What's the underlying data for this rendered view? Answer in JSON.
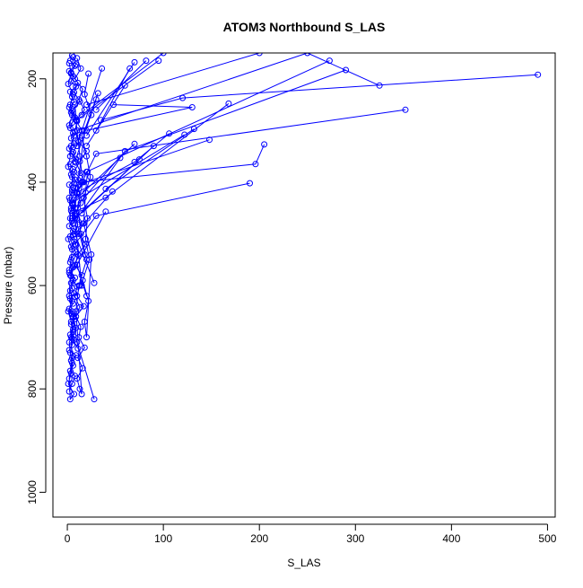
{
  "chart_data": {
    "type": "line",
    "title": "ATOM3 Northbound S_LAS",
    "xlabel": "S_LAS",
    "ylabel": "Pressure (mbar)",
    "xlim": [
      -15,
      508
    ],
    "ylim": [
      1048,
      150
    ],
    "y_reversed": true,
    "x_ticks": [
      0,
      100,
      200,
      300,
      400,
      500
    ],
    "y_ticks": [
      200,
      400,
      600,
      800,
      1000
    ],
    "marker": "open-circle",
    "color": "#0000ff",
    "series": [
      {
        "x": [
          490,
          120,
          35
        ],
        "y": [
          192,
          237,
          280
        ]
      },
      {
        "x": [
          352,
          30,
          10
        ],
        "y": [
          260,
          345,
          420
        ]
      },
      {
        "x": [
          325,
          250,
          10
        ],
        "y": [
          213,
          150,
          300
        ]
      },
      {
        "x": [
          290,
          60,
          8
        ],
        "y": [
          183,
          340,
          450
        ]
      },
      {
        "x": [
          273,
          20,
          5
        ],
        "y": [
          165,
          380,
          420
        ]
      },
      {
        "x": [
          205,
          196,
          15
        ],
        "y": [
          327,
          365,
          400
        ]
      },
      {
        "x": [
          190,
          30,
          8
        ],
        "y": [
          402,
          465,
          520
        ]
      },
      {
        "x": [
          168,
          40,
          5
        ],
        "y": [
          248,
          430,
          460
        ]
      },
      {
        "x": [
          148,
          12,
          5
        ],
        "y": [
          318,
          405,
          470
        ]
      },
      {
        "x": [
          122,
          5
        ],
        "y": [
          308,
          440
        ]
      },
      {
        "x": [
          132,
          40
        ],
        "y": [
          297,
          413
        ]
      },
      {
        "x": [
          106,
          70,
          10
        ],
        "y": [
          306,
          361,
          420
        ]
      },
      {
        "x": [
          90,
          15
        ],
        "y": [
          330,
          460
        ]
      },
      {
        "x": [
          70,
          5,
          18
        ],
        "y": [
          326,
          440,
          540
        ]
      },
      {
        "x": [
          55,
          10
        ],
        "y": [
          353,
          470
        ]
      },
      {
        "x": [
          47,
          8,
          28
        ],
        "y": [
          418,
          500,
          595
        ]
      },
      {
        "x": [
          48,
          130,
          20
        ],
        "y": [
          250,
          255,
          300
        ]
      },
      {
        "x": [
          40,
          10,
          20
        ],
        "y": [
          457,
          560,
          620
        ]
      },
      {
        "x": [
          75,
          8,
          15
        ],
        "y": [
          356,
          470,
          600
        ]
      },
      {
        "x": [
          36,
          10
        ],
        "y": [
          180,
          330
        ]
      },
      {
        "x": [
          32,
          18,
          6
        ],
        "y": [
          228,
          300,
          480
        ]
      },
      {
        "x": [
          30,
          8
        ],
        "y": [
          240,
          360
        ]
      },
      {
        "x": [
          60,
          20
        ],
        "y": [
          213,
          330
        ]
      },
      {
        "x": [
          65,
          30
        ],
        "y": [
          180,
          300
        ]
      },
      {
        "x": [
          70,
          20
        ],
        "y": [
          168,
          310
        ]
      },
      {
        "x": [
          82,
          30
        ],
        "y": [
          165,
          260
        ]
      },
      {
        "x": [
          100,
          15
        ],
        "y": [
          150,
          270
        ]
      },
      {
        "x": [
          200,
          20
        ],
        "y": [
          150,
          250
        ]
      },
      {
        "x": [
          95,
          10
        ],
        "y": [
          165,
          280
        ]
      },
      {
        "x": [
          28,
          10,
          5
        ],
        "y": [
          820,
          710,
          650
        ]
      },
      {
        "x": [
          5,
          3,
          8,
          2,
          6,
          4,
          9,
          3,
          5,
          7,
          2,
          4,
          8,
          5,
          3,
          6,
          4,
          7,
          2,
          5,
          9,
          3,
          6,
          4,
          8,
          2,
          5,
          7,
          3,
          6,
          4,
          8,
          5,
          2,
          6,
          3,
          7,
          4,
          9,
          5,
          3,
          6,
          2,
          8,
          4,
          5,
          7,
          3,
          6,
          2,
          5,
          8,
          4,
          6,
          3,
          7,
          5,
          2,
          9,
          4,
          6,
          3,
          8,
          5,
          2
        ],
        "y": [
          155,
          165,
          175,
          185,
          195,
          205,
          215,
          225,
          235,
          245,
          255,
          265,
          275,
          285,
          295,
          305,
          315,
          325,
          335,
          345,
          355,
          365,
          375,
          385,
          395,
          405,
          415,
          425,
          435,
          445,
          455,
          465,
          475,
          485,
          495,
          505,
          515,
          525,
          535,
          545,
          555,
          565,
          575,
          585,
          595,
          605,
          615,
          625,
          635,
          645,
          655,
          665,
          675,
          685,
          695,
          705,
          715,
          725,
          735,
          745,
          755,
          765,
          775,
          790,
          805
        ]
      },
      {
        "x": [
          10,
          14,
          8,
          16,
          12,
          18,
          9,
          15,
          11,
          20,
          13,
          7,
          17,
          10,
          14,
          9,
          16,
          12,
          19,
          11,
          8,
          15,
          13,
          10,
          17,
          9,
          14,
          12,
          18,
          11,
          16,
          10,
          13,
          15,
          9,
          12,
          20,
          14,
          11,
          16,
          13,
          10,
          8
        ],
        "y": [
          160,
          180,
          200,
          220,
          240,
          260,
          280,
          300,
          320,
          340,
          360,
          380,
          400,
          420,
          440,
          460,
          480,
          500,
          520,
          540,
          560,
          580,
          600,
          620,
          640,
          660,
          680,
          700,
          720,
          740,
          760,
          780,
          800,
          810,
          650,
          600,
          550,
          500,
          450,
          400,
          350,
          300,
          250
        ]
      },
      {
        "x": [
          2,
          4,
          1,
          6,
          3,
          5,
          2,
          7,
          4,
          3,
          1,
          5,
          6,
          2,
          4,
          3,
          7,
          1,
          5,
          4,
          2,
          6,
          3,
          5,
          1,
          4,
          6,
          2,
          3,
          5,
          4,
          1,
          7,
          3,
          2,
          5,
          4,
          6,
          2,
          3
        ],
        "y": [
          170,
          190,
          210,
          230,
          250,
          270,
          290,
          310,
          330,
          350,
          370,
          390,
          410,
          430,
          450,
          470,
          490,
          510,
          530,
          550,
          570,
          590,
          610,
          630,
          650,
          670,
          690,
          710,
          730,
          750,
          770,
          790,
          810,
          820,
          780,
          740,
          700,
          660,
          620,
          580
        ]
      },
      {
        "x": [
          22,
          18,
          25,
          15,
          20,
          24,
          17,
          21,
          19,
          23,
          16,
          22,
          18,
          20,
          25,
          17,
          19,
          21
        ],
        "y": [
          190,
          230,
          270,
          310,
          350,
          390,
          430,
          470,
          510,
          550,
          590,
          630,
          670,
          700,
          540,
          480,
          420,
          380
        ]
      },
      {
        "x": [
          6,
          9,
          4,
          11,
          7,
          13,
          5,
          10,
          8,
          12,
          6,
          9,
          14,
          7,
          10,
          5,
          8,
          11,
          6,
          9,
          12,
          7,
          4,
          10,
          8,
          13,
          6,
          9,
          5,
          11
        ],
        "y": [
          158,
          172,
          188,
          208,
          226,
          244,
          262,
          282,
          302,
          322,
          342,
          362,
          382,
          402,
          422,
          442,
          462,
          482,
          502,
          522,
          542,
          562,
          582,
          602,
          622,
          642,
          662,
          682,
          702,
          722
        ]
      }
    ]
  }
}
